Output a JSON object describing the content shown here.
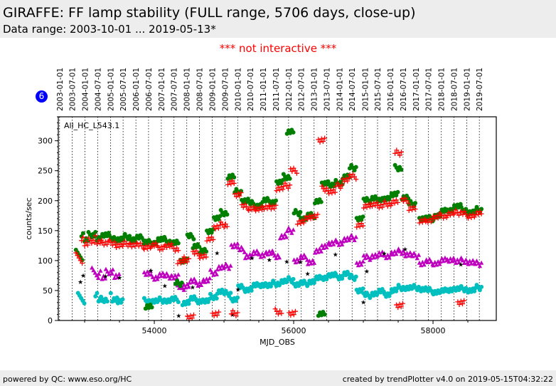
{
  "header": {
    "title": "GIRAFFE: FF lamp stability (FULL range, 5706 days, close-up)",
    "subtitle": "Data range: 2003-10-01 ... 2019-05-13*"
  },
  "notice": "*** not interactive ***",
  "badge": "6",
  "footer": {
    "left": "powered by QC: www.eso.org/HC",
    "right": "created by trendPlotter v4.0 on 2019-05-15T04:32:22"
  },
  "chart_data": {
    "type": "scatter",
    "annotation": "All_HC_L543.1",
    "xlabel": "MJD_OBS",
    "ylabel": "counts/sec",
    "xlim": [
      52622,
      58908
    ],
    "ylim": [
      0,
      340
    ],
    "xticks": [
      54000,
      56000,
      58000
    ],
    "yticks": [
      0,
      50,
      100,
      150,
      200,
      250,
      300
    ],
    "grid": "vertical dotted lines at top date ticks",
    "date_ticks": [
      "2003-01-01",
      "2003-07-01",
      "2004-01-01",
      "2004-07-01",
      "2005-01-01",
      "2005-07-01",
      "2006-01-01",
      "2006-07-01",
      "2007-01-01",
      "2007-07-01",
      "2008-01-01",
      "2008-07-01",
      "2009-01-01",
      "2009-07-01",
      "2010-01-01",
      "2010-07-01",
      "2011-01-01",
      "2011-07-01",
      "2012-01-01",
      "2012-07-01",
      "2013-01-01",
      "2013-07-01",
      "2014-01-01",
      "2014-07-01",
      "2015-01-01",
      "2015-07-01",
      "2016-01-01",
      "2016-07-01",
      "2017-01-01",
      "2017-07-01",
      "2018-01-01",
      "2018-07-01",
      "2019-01-01",
      "2019-07-01"
    ],
    "series": [
      {
        "marker": "circle",
        "color": "#00bfbf",
        "points": [
          [
            52950,
            33
          ],
          [
            53200,
            35
          ],
          [
            53280,
            32
          ],
          [
            53420,
            36
          ],
          [
            53500,
            31
          ],
          [
            53900,
            33
          ],
          [
            54000,
            32
          ],
          [
            54100,
            34
          ],
          [
            54200,
            33
          ],
          [
            54300,
            35
          ],
          [
            54450,
            30
          ],
          [
            54550,
            36
          ],
          [
            54650,
            33
          ],
          [
            54750,
            32
          ],
          [
            54850,
            40
          ],
          [
            54950,
            48
          ],
          [
            55050,
            45
          ],
          [
            55150,
            35
          ],
          [
            55250,
            55
          ],
          [
            55350,
            52
          ],
          [
            55450,
            58
          ],
          [
            55550,
            60
          ],
          [
            55650,
            58
          ],
          [
            55750,
            62
          ],
          [
            55850,
            65
          ],
          [
            55950,
            68
          ],
          [
            56050,
            60
          ],
          [
            56150,
            62
          ],
          [
            56250,
            65
          ],
          [
            56350,
            70
          ],
          [
            56450,
            72
          ],
          [
            56550,
            75
          ],
          [
            56650,
            73
          ],
          [
            56750,
            78
          ],
          [
            56850,
            72
          ],
          [
            56950,
            50
          ],
          [
            57050,
            42
          ],
          [
            57150,
            45
          ],
          [
            57250,
            48
          ],
          [
            57350,
            44
          ],
          [
            57450,
            50
          ],
          [
            57550,
            55
          ],
          [
            57650,
            54
          ],
          [
            57750,
            55
          ],
          [
            57850,
            52
          ],
          [
            57950,
            50
          ],
          [
            58050,
            48
          ],
          [
            58150,
            49
          ],
          [
            58250,
            52
          ],
          [
            58350,
            52
          ],
          [
            58450,
            53
          ],
          [
            58550,
            50
          ],
          [
            58650,
            55
          ]
        ]
      },
      {
        "marker": "triangle",
        "color": "#bf00bf",
        "points": [
          [
            53150,
            75
          ],
          [
            53250,
            72
          ],
          [
            53350,
            78
          ],
          [
            53450,
            75
          ],
          [
            53900,
            78
          ],
          [
            54000,
            72
          ],
          [
            54100,
            76
          ],
          [
            54200,
            74
          ],
          [
            54300,
            73
          ],
          [
            54380,
            55
          ],
          [
            54450,
            58
          ],
          [
            54550,
            65
          ],
          [
            54650,
            62
          ],
          [
            54750,
            66
          ],
          [
            54850,
            80
          ],
          [
            54950,
            88
          ],
          [
            55050,
            90
          ],
          [
            55150,
            125
          ],
          [
            55250,
            118
          ],
          [
            55350,
            108
          ],
          [
            55450,
            112
          ],
          [
            55550,
            110
          ],
          [
            55650,
            112
          ],
          [
            55750,
            108
          ],
          [
            55850,
            140
          ],
          [
            55950,
            150
          ],
          [
            56050,
            100
          ],
          [
            56150,
            105
          ],
          [
            56250,
            98
          ],
          [
            56350,
            115
          ],
          [
            56450,
            125
          ],
          [
            56550,
            128
          ],
          [
            56650,
            130
          ],
          [
            56750,
            135
          ],
          [
            56850,
            138
          ],
          [
            56950,
            95
          ],
          [
            57050,
            105
          ],
          [
            57150,
            108
          ],
          [
            57250,
            110
          ],
          [
            57350,
            108
          ],
          [
            57450,
            112
          ],
          [
            57550,
            115
          ],
          [
            57650,
            110
          ],
          [
            57750,
            108
          ],
          [
            57850,
            95
          ],
          [
            57950,
            98
          ],
          [
            58050,
            96
          ],
          [
            58150,
            100
          ],
          [
            58250,
            102
          ],
          [
            58350,
            98
          ],
          [
            58450,
            100
          ],
          [
            58550,
            97
          ],
          [
            58650,
            95
          ]
        ]
      },
      {
        "marker": "star",
        "color": "#000000",
        "points": [
          [
            52940,
            60
          ],
          [
            52980,
            78
          ],
          [
            53300,
            75
          ],
          [
            53500,
            70
          ],
          [
            53950,
            80
          ],
          [
            54150,
            62
          ],
          [
            54350,
            10
          ],
          [
            54550,
            55
          ],
          [
            54900,
            110
          ],
          [
            55120,
            5
          ],
          [
            55200,
            55
          ],
          [
            55400,
            105
          ],
          [
            55650,
            100
          ],
          [
            55900,
            95
          ],
          [
            56100,
            102
          ],
          [
            56200,
            80
          ],
          [
            56600,
            110
          ],
          [
            57000,
            28
          ],
          [
            57050,
            78
          ],
          [
            57300,
            115
          ],
          [
            57600,
            120
          ],
          [
            58400,
            92
          ]
        ]
      },
      {
        "marker": "circle",
        "color": "#007f00",
        "points": [
          [
            52920,
            105
          ],
          [
            53000,
            135
          ],
          [
            53100,
            140
          ],
          [
            53200,
            138
          ],
          [
            53300,
            142
          ],
          [
            53400,
            138
          ],
          [
            53500,
            135
          ],
          [
            53600,
            140
          ],
          [
            53700,
            135
          ],
          [
            53800,
            138
          ],
          [
            53900,
            132
          ],
          [
            53920,
            22
          ],
          [
            54000,
            130
          ],
          [
            54100,
            135
          ],
          [
            54200,
            132
          ],
          [
            54300,
            130
          ],
          [
            54350,
            62
          ],
          [
            54420,
            100
          ],
          [
            54520,
            140
          ],
          [
            54600,
            125
          ],
          [
            54700,
            115
          ],
          [
            54800,
            150
          ],
          [
            54900,
            170
          ],
          [
            55000,
            180
          ],
          [
            55100,
            240
          ],
          [
            55200,
            215
          ],
          [
            55300,
            200
          ],
          [
            55400,
            195
          ],
          [
            55500,
            192
          ],
          [
            55600,
            200
          ],
          [
            55700,
            198
          ],
          [
            55800,
            230
          ],
          [
            55900,
            240
          ],
          [
            55950,
            315
          ],
          [
            56050,
            180
          ],
          [
            56150,
            170
          ],
          [
            56250,
            175
          ],
          [
            56350,
            200
          ],
          [
            56400,
            10
          ],
          [
            56450,
            230
          ],
          [
            56550,
            225
          ],
          [
            56650,
            230
          ],
          [
            56750,
            240
          ],
          [
            56850,
            255
          ],
          [
            56950,
            170
          ],
          [
            57050,
            200
          ],
          [
            57150,
            205
          ],
          [
            57250,
            200
          ],
          [
            57350,
            205
          ],
          [
            57450,
            210
          ],
          [
            57500,
            255
          ],
          [
            57600,
            205
          ],
          [
            57700,
            195
          ],
          [
            57850,
            170
          ],
          [
            57950,
            170
          ],
          [
            58050,
            175
          ],
          [
            58150,
            182
          ],
          [
            58250,
            185
          ],
          [
            58350,
            190
          ],
          [
            58450,
            185
          ],
          [
            58550,
            180
          ],
          [
            58650,
            185
          ]
        ]
      },
      {
        "marker": "plus",
        "color": "#ff0000",
        "points": [
          [
            52920,
            100
          ],
          [
            53000,
            128
          ],
          [
            53100,
            130
          ],
          [
            53200,
            132
          ],
          [
            53300,
            128
          ],
          [
            53400,
            130
          ],
          [
            53500,
            125
          ],
          [
            53600,
            128
          ],
          [
            53700,
            126
          ],
          [
            53800,
            125
          ],
          [
            53900,
            123
          ],
          [
            54000,
            125
          ],
          [
            54100,
            122
          ],
          [
            54200,
            124
          ],
          [
            54300,
            120
          ],
          [
            54380,
            98
          ],
          [
            54450,
            102
          ],
          [
            54520,
            6
          ],
          [
            54600,
            112
          ],
          [
            54700,
            108
          ],
          [
            54800,
            135
          ],
          [
            54880,
            12
          ],
          [
            54900,
            155
          ],
          [
            55000,
            160
          ],
          [
            55100,
            230
          ],
          [
            55150,
            12
          ],
          [
            55200,
            210
          ],
          [
            55300,
            190
          ],
          [
            55400,
            188
          ],
          [
            55500,
            185
          ],
          [
            55600,
            190
          ],
          [
            55700,
            188
          ],
          [
            55780,
            15
          ],
          [
            55800,
            220
          ],
          [
            55900,
            225
          ],
          [
            55980,
            12
          ],
          [
            56000,
            250
          ],
          [
            56100,
            165
          ],
          [
            56200,
            170
          ],
          [
            56300,
            175
          ],
          [
            56400,
            300
          ],
          [
            56450,
            220
          ],
          [
            56550,
            215
          ],
          [
            56650,
            225
          ],
          [
            56750,
            235
          ],
          [
            56850,
            240
          ],
          [
            56950,
            160
          ],
          [
            57050,
            190
          ],
          [
            57150,
            195
          ],
          [
            57250,
            190
          ],
          [
            57350,
            195
          ],
          [
            57450,
            198
          ],
          [
            57500,
            280
          ],
          [
            57520,
            25
          ],
          [
            57600,
            200
          ],
          [
            57700,
            188
          ],
          [
            57850,
            165
          ],
          [
            57950,
            168
          ],
          [
            58050,
            172
          ],
          [
            58150,
            175
          ],
          [
            58250,
            178
          ],
          [
            58350,
            180
          ],
          [
            58400,
            30
          ],
          [
            58450,
            178
          ],
          [
            58550,
            175
          ],
          [
            58650,
            178
          ]
        ]
      }
    ]
  }
}
